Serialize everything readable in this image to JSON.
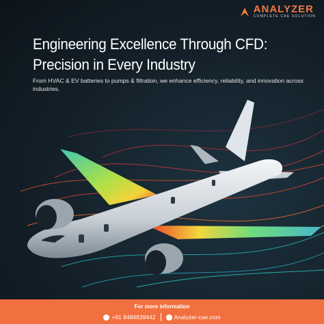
{
  "header": {
    "brand": "ANALYZER",
    "tagline": "COMPLETE CAE SOLUTION"
  },
  "headline": [
    "Engineering Excellence Through CFD:",
    "Precision in Every Industry"
  ],
  "description": "From HVAC & EV batteries to pumps & filtration, we enhance efficiency, reliability, and innovation across industries.",
  "footer": {
    "heading": "For more information",
    "phone": "+91 8484839442",
    "email": "Analyzer-cae.com"
  }
}
